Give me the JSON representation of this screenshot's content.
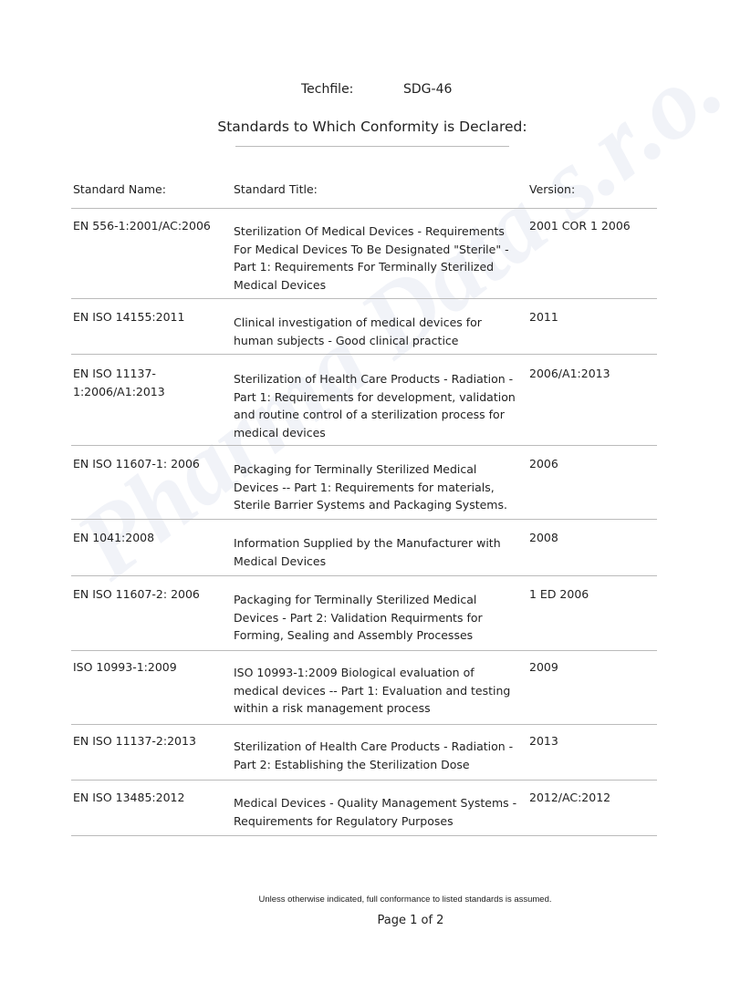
{
  "header": {
    "techfile_label": "Techfile:",
    "techfile_value": "SDG-46",
    "title": "Standards to Which Conformity is Declared:"
  },
  "table": {
    "columns": [
      "Standard Name:",
      "Standard Title:",
      "Version:"
    ],
    "rows": [
      [
        "EN 556-1:2001/AC:2006",
        "Sterilization Of Medical Devices - Requirements For Medical Devices To Be Designated \"Sterile\" - Part 1: Requirements For Terminally Sterilized Medical Devices",
        "2001 COR 1 2006"
      ],
      [
        "EN ISO 14155:2011",
        "Clinical investigation of medical devices for human subjects - Good clinical practice",
        "2011"
      ],
      [
        "EN ISO 11137-1:2006/A1:2013",
        "Sterilization of Health Care Products - Radiation - Part 1: Requirements for development, validation and routine control of a sterilization process for medical devices",
        "2006/A1:2013"
      ],
      [
        "EN ISO 11607-1: 2006",
        "Packaging for Terminally Sterilized Medical Devices -- Part 1:  Requirements for materials, Sterile Barrier Systems and Packaging Systems.",
        "2006"
      ],
      [
        "EN 1041:2008",
        "Information Supplied by the Manufacturer with Medical Devices",
        "2008"
      ],
      [
        "EN ISO 11607-2: 2006",
        "Packaging for Terminally Sterilized Medical Devices - Part 2: Validation Requirments for Forming, Sealing and Assembly Processes",
        "1 ED 2006"
      ],
      [
        "ISO 10993-1:2009",
        "ISO 10993-1:2009 Biological evaluation of medical devices -- Part 1: Evaluation and testing within a risk management process",
        "2009"
      ],
      [
        "EN ISO 11137-2:2013",
        "Sterilization of Health Care Products - Radiation - Part 2: Establishing the Sterilization Dose",
        "2013"
      ],
      [
        "EN ISO 13485:2012",
        "Medical Devices - Quality Management Systems - Requirements for Regulatory Purposes",
        "2012/AC:2012"
      ]
    ]
  },
  "footer": {
    "note": "Unless otherwise indicated, full conformance to listed standards is assumed.",
    "page": "Page 1 of 2"
  },
  "watermark": "Pharma Data s.r.o."
}
